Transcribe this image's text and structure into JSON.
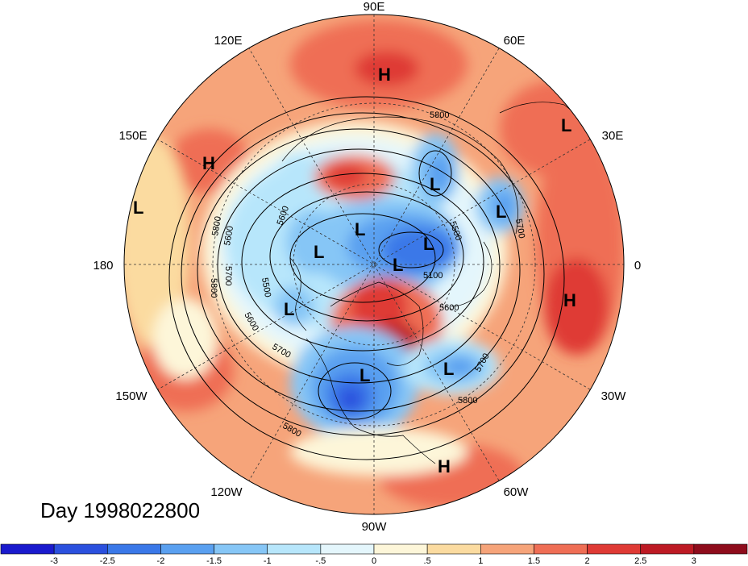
{
  "title": "Day 1998022800",
  "longitude_labels": {
    "e90": "90E",
    "e60": "60E",
    "e30": "30E",
    "zero": "0",
    "w30": "30W",
    "w60": "60W",
    "w90": "90W",
    "w120": "120W",
    "w150": "150W",
    "d180": "180",
    "e150": "150E",
    "e120": "120E"
  },
  "pressure_centers": {
    "h1": "H",
    "h2": "H",
    "h3": "H",
    "h4": "H",
    "l1": "L",
    "l2": "L",
    "l3": "L",
    "l4": "L",
    "l5": "L",
    "l6": "L",
    "l7": "L",
    "l8": "L",
    "l9": "L",
    "l10": "L",
    "l11": "L"
  },
  "contour_labels": {
    "c1": "5800",
    "c2": "5700",
    "c3": "5600",
    "c4": "5500",
    "c5": "5800",
    "c6": "5700",
    "c7": "5600",
    "c8": "5500",
    "c9": "5100",
    "c10": "5800",
    "c11": "5700",
    "c12": "5800",
    "c13": "5600",
    "c14": "5800",
    "c15": "5700",
    "c16": "5600"
  },
  "colorbar": {
    "labels": [
      "-3",
      "-2.5",
      "-2",
      "-1.5",
      "-1",
      "-.5",
      "0",
      ".5",
      "1",
      "1.5",
      "2",
      "2.5",
      "3"
    ],
    "colors": [
      "#1a1acd",
      "#2b50de",
      "#3a78e8",
      "#5aa0f0",
      "#86c6f6",
      "#b7e6fb",
      "#e4f6fc",
      "#fdf6d9",
      "#fbdba0",
      "#f6a47a",
      "#ef6e55",
      "#df3a35",
      "#bd1a24",
      "#8e0c1c"
    ]
  }
}
